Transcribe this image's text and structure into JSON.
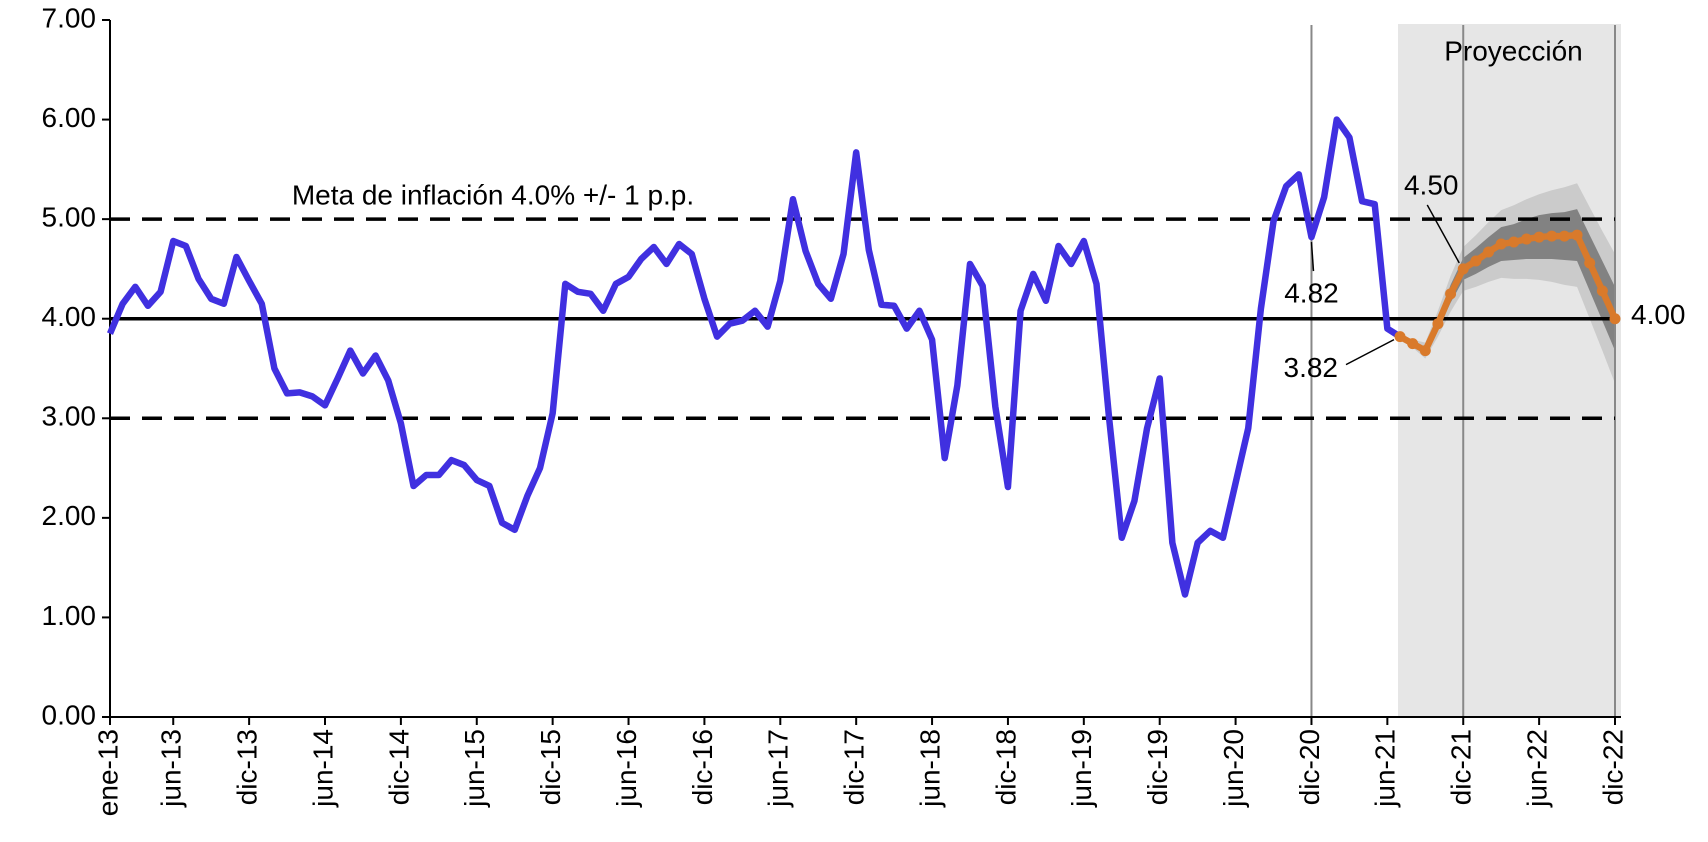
{
  "chart_data": {
    "type": "line",
    "categories": [
      "ene-13",
      null,
      null,
      null,
      null,
      "jun-13",
      null,
      null,
      null,
      null,
      null,
      "dic-13",
      null,
      null,
      null,
      null,
      null,
      "jun-14",
      null,
      null,
      null,
      null,
      null,
      "dic-14",
      null,
      null,
      null,
      null,
      null,
      "jun-15",
      null,
      null,
      null,
      null,
      null,
      "dic-15",
      null,
      null,
      null,
      null,
      null,
      "jun-16",
      null,
      null,
      null,
      null,
      null,
      "dic-16",
      null,
      null,
      null,
      null,
      null,
      "jun-17",
      null,
      null,
      null,
      null,
      null,
      "dic-17",
      null,
      null,
      null,
      null,
      null,
      "jun-18",
      null,
      null,
      null,
      null,
      null,
      "dic-18",
      null,
      null,
      null,
      null,
      null,
      "jun-19",
      null,
      null,
      null,
      null,
      null,
      "dic-19",
      null,
      null,
      null,
      null,
      null,
      "jun-20",
      null,
      null,
      null,
      null,
      null,
      "dic-20",
      null,
      null,
      null,
      null,
      null,
      "jun-21",
      null,
      null,
      null,
      null,
      null,
      "dic-21",
      null,
      null,
      null,
      null,
      null,
      "jun-22",
      null,
      null,
      null,
      null,
      null,
      "dic-22"
    ],
    "series": [
      {
        "color": "#4030e0",
        "values": [
          3.85,
          4.15,
          4.32,
          4.13,
          4.27,
          4.78,
          4.73,
          4.4,
          4.2,
          4.15,
          4.62,
          4.38,
          4.15,
          3.5,
          3.25,
          3.26,
          3.22,
          3.13,
          3.4,
          3.68,
          3.45,
          3.63,
          3.38,
          2.95,
          2.32,
          2.43,
          2.43,
          2.58,
          2.53,
          2.38,
          2.32,
          1.95,
          1.88,
          2.22,
          2.5,
          3.05,
          4.35,
          4.27,
          4.25,
          4.08,
          4.35,
          4.42,
          4.6,
          4.72,
          4.55,
          4.75,
          4.65,
          4.2,
          3.82,
          3.95,
          3.98,
          4.08,
          3.92,
          4.38,
          5.2,
          4.68,
          4.35,
          4.2,
          4.65,
          5.67,
          4.69,
          4.14,
          4.13,
          3.9,
          4.08,
          3.79,
          2.6,
          3.33,
          4.55,
          4.33,
          3.12,
          2.31,
          4.08,
          4.45,
          4.18,
          4.73,
          4.55,
          4.78,
          4.35,
          3.0,
          1.8,
          2.17,
          2.9,
          3.4,
          1.75,
          1.23,
          1.75,
          1.87,
          1.8,
          2.35,
          2.9,
          4.1,
          4.98,
          5.33,
          5.45,
          4.82,
          5.22,
          6.0,
          5.82,
          5.18,
          5.15,
          3.9,
          3.82,
          null,
          null,
          null,
          null,
          null,
          null,
          null,
          null,
          null,
          null,
          null,
          null,
          null,
          null,
          null,
          null,
          null
        ],
        "value_labels": [
          null,
          null,
          null,
          null,
          null,
          null,
          null,
          null,
          null,
          null,
          null,
          null,
          null,
          null,
          null,
          null,
          null,
          null,
          null,
          null,
          null,
          null,
          null,
          null,
          null,
          null,
          null,
          null,
          null,
          null,
          null,
          null,
          null,
          null,
          null,
          null,
          null,
          null,
          null,
          null,
          null,
          null,
          null,
          null,
          null,
          null,
          null,
          null,
          null,
          null,
          null,
          null,
          null,
          null,
          null,
          null,
          null,
          null,
          null,
          null,
          null,
          null,
          null,
          null,
          null,
          null,
          null,
          null,
          null,
          null,
          null,
          null,
          null,
          null,
          null,
          null,
          null,
          null,
          null,
          null,
          null,
          null,
          null,
          null,
          null,
          null,
          null,
          null,
          null,
          null,
          null,
          null,
          null,
          null,
          null,
          "4.82",
          null,
          null,
          null,
          null,
          null,
          null,
          null,
          null,
          null,
          null,
          null,
          null,
          null,
          null,
          null,
          null,
          null,
          null,
          null,
          null,
          null,
          null,
          null,
          null
        ]
      },
      {
        "color": "#d97a2b",
        "markers": true,
        "values": [
          null,
          null,
          null,
          null,
          null,
          null,
          null,
          null,
          null,
          null,
          null,
          null,
          null,
          null,
          null,
          null,
          null,
          null,
          null,
          null,
          null,
          null,
          null,
          null,
          null,
          null,
          null,
          null,
          null,
          null,
          null,
          null,
          null,
          null,
          null,
          null,
          null,
          null,
          null,
          null,
          null,
          null,
          null,
          null,
          null,
          null,
          null,
          null,
          null,
          null,
          null,
          null,
          null,
          null,
          null,
          null,
          null,
          null,
          null,
          null,
          null,
          null,
          null,
          null,
          null,
          null,
          null,
          null,
          null,
          null,
          null,
          null,
          null,
          null,
          null,
          null,
          null,
          null,
          null,
          null,
          null,
          null,
          null,
          null,
          null,
          null,
          null,
          null,
          null,
          null,
          null,
          null,
          null,
          null,
          null,
          null,
          null,
          null,
          null,
          null,
          null,
          null,
          3.82,
          3.75,
          3.68,
          3.95,
          4.25,
          4.5,
          4.58,
          4.67,
          4.75,
          4.77,
          4.8,
          4.82,
          4.83,
          4.83,
          4.84,
          4.56,
          4.28,
          4.0
        ],
        "value_labels": [
          null,
          null,
          null,
          null,
          null,
          null,
          null,
          null,
          null,
          null,
          null,
          null,
          null,
          null,
          null,
          null,
          null,
          null,
          null,
          null,
          null,
          null,
          null,
          null,
          null,
          null,
          null,
          null,
          null,
          null,
          null,
          null,
          null,
          null,
          null,
          null,
          null,
          null,
          null,
          null,
          null,
          null,
          null,
          null,
          null,
          null,
          null,
          null,
          null,
          null,
          null,
          null,
          null,
          null,
          null,
          null,
          null,
          null,
          null,
          null,
          null,
          null,
          null,
          null,
          null,
          null,
          null,
          null,
          null,
          null,
          null,
          null,
          null,
          null,
          null,
          null,
          null,
          null,
          null,
          null,
          null,
          null,
          null,
          null,
          null,
          null,
          null,
          null,
          null,
          null,
          null,
          null,
          null,
          null,
          null,
          null,
          null,
          null,
          null,
          null,
          null,
          null,
          "3.82",
          null,
          null,
          null,
          null,
          "4.50",
          null,
          null,
          null,
          null,
          null,
          null,
          null,
          null,
          null,
          null,
          null,
          "4.00"
        ]
      }
    ],
    "fan": [
      {
        "color": "#c8c8c8",
        "lower": [
          null,
          null,
          null,
          null,
          null,
          null,
          null,
          null,
          null,
          null,
          null,
          null,
          null,
          null,
          null,
          null,
          null,
          null,
          null,
          null,
          null,
          null,
          null,
          null,
          null,
          null,
          null,
          null,
          null,
          null,
          null,
          null,
          null,
          null,
          null,
          null,
          null,
          null,
          null,
          null,
          null,
          null,
          null,
          null,
          null,
          null,
          null,
          null,
          null,
          null,
          null,
          null,
          null,
          null,
          null,
          null,
          null,
          null,
          null,
          null,
          null,
          null,
          null,
          null,
          null,
          null,
          null,
          null,
          null,
          null,
          null,
          null,
          null,
          null,
          null,
          null,
          null,
          null,
          null,
          null,
          null,
          null,
          null,
          null,
          null,
          null,
          null,
          null,
          null,
          null,
          null,
          null,
          null,
          null,
          null,
          null,
          null,
          null,
          null,
          null,
          null,
          null,
          3.82,
          3.71,
          3.6,
          3.82,
          4.07,
          4.28,
          4.32,
          4.37,
          4.41,
          4.4,
          4.4,
          4.39,
          4.37,
          4.34,
          4.32,
          4.0,
          3.68,
          3.35
        ],
        "upper": [
          null,
          null,
          null,
          null,
          null,
          null,
          null,
          null,
          null,
          null,
          null,
          null,
          null,
          null,
          null,
          null,
          null,
          null,
          null,
          null,
          null,
          null,
          null,
          null,
          null,
          null,
          null,
          null,
          null,
          null,
          null,
          null,
          null,
          null,
          null,
          null,
          null,
          null,
          null,
          null,
          null,
          null,
          null,
          null,
          null,
          null,
          null,
          null,
          null,
          null,
          null,
          null,
          null,
          null,
          null,
          null,
          null,
          null,
          null,
          null,
          null,
          null,
          null,
          null,
          null,
          null,
          null,
          null,
          null,
          null,
          null,
          null,
          null,
          null,
          null,
          null,
          null,
          null,
          null,
          null,
          null,
          null,
          null,
          null,
          null,
          null,
          null,
          null,
          null,
          null,
          null,
          null,
          null,
          null,
          null,
          null,
          null,
          null,
          null,
          null,
          null,
          null,
          3.82,
          3.79,
          3.76,
          4.08,
          4.43,
          4.72,
          4.84,
          4.97,
          5.09,
          5.14,
          5.2,
          5.25,
          5.29,
          5.32,
          5.36,
          5.12,
          4.88,
          4.65
        ]
      },
      {
        "color": "#7a7a7a",
        "lower": [
          null,
          null,
          null,
          null,
          null,
          null,
          null,
          null,
          null,
          null,
          null,
          null,
          null,
          null,
          null,
          null,
          null,
          null,
          null,
          null,
          null,
          null,
          null,
          null,
          null,
          null,
          null,
          null,
          null,
          null,
          null,
          null,
          null,
          null,
          null,
          null,
          null,
          null,
          null,
          null,
          null,
          null,
          null,
          null,
          null,
          null,
          null,
          null,
          null,
          null,
          null,
          null,
          null,
          null,
          null,
          null,
          null,
          null,
          null,
          null,
          null,
          null,
          null,
          null,
          null,
          null,
          null,
          null,
          null,
          null,
          null,
          null,
          null,
          null,
          null,
          null,
          null,
          null,
          null,
          null,
          null,
          null,
          null,
          null,
          null,
          null,
          null,
          null,
          null,
          null,
          null,
          null,
          null,
          null,
          null,
          null,
          null,
          null,
          null,
          null,
          null,
          null,
          3.82,
          3.73,
          3.64,
          3.89,
          4.16,
          4.39,
          4.45,
          4.52,
          4.58,
          4.59,
          4.6,
          4.6,
          4.6,
          4.59,
          4.58,
          4.28,
          3.98,
          3.68
        ],
        "upper": [
          null,
          null,
          null,
          null,
          null,
          null,
          null,
          null,
          null,
          null,
          null,
          null,
          null,
          null,
          null,
          null,
          null,
          null,
          null,
          null,
          null,
          null,
          null,
          null,
          null,
          null,
          null,
          null,
          null,
          null,
          null,
          null,
          null,
          null,
          null,
          null,
          null,
          null,
          null,
          null,
          null,
          null,
          null,
          null,
          null,
          null,
          null,
          null,
          null,
          null,
          null,
          null,
          null,
          null,
          null,
          null,
          null,
          null,
          null,
          null,
          null,
          null,
          null,
          null,
          null,
          null,
          null,
          null,
          null,
          null,
          null,
          null,
          null,
          null,
          null,
          null,
          null,
          null,
          null,
          null,
          null,
          null,
          null,
          null,
          null,
          null,
          null,
          null,
          null,
          null,
          null,
          null,
          null,
          null,
          null,
          null,
          null,
          null,
          null,
          null,
          null,
          null,
          3.82,
          3.77,
          3.72,
          4.01,
          4.34,
          4.61,
          4.71,
          4.82,
          4.92,
          4.95,
          5.0,
          5.04,
          5.06,
          5.07,
          5.1,
          4.84,
          4.58,
          4.32
        ]
      }
    ],
    "reference_lines": [
      {
        "value": 5,
        "style": "dashed"
      },
      {
        "value": 4,
        "style": "solid"
      },
      {
        "value": 3,
        "style": "dashed"
      }
    ],
    "reference_label": "Meta de inflación 4.0% +/- 1 p.p.",
    "projection_label": "Proyección",
    "vlines": [
      "dic-20",
      "dic-21",
      "dic-22"
    ],
    "ylim": [
      0,
      7
    ],
    "yticks": [
      {
        "value": 0,
        "label": "0.00"
      },
      {
        "value": 1,
        "label": "1.00"
      },
      {
        "value": 2,
        "label": "2.00"
      },
      {
        "value": 3,
        "label": "3.00"
      },
      {
        "value": 4,
        "label": "4.00"
      },
      {
        "value": 5,
        "label": "5.00"
      },
      {
        "value": 6,
        "label": "6.00"
      },
      {
        "value": 7,
        "label": "7.00"
      }
    ]
  }
}
